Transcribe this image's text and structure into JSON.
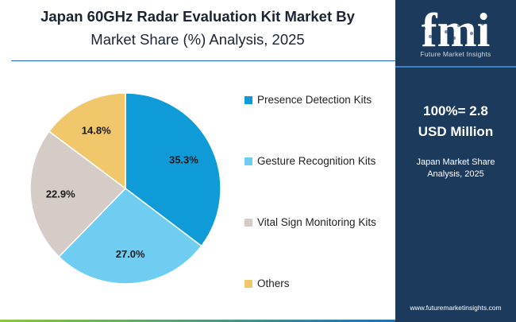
{
  "title": {
    "line1": "Japan 60GHz Radar Evaluation Kit Market By",
    "line2": "Market Share (%) Analysis, 2025"
  },
  "chart_data": {
    "type": "pie",
    "title": "Japan 60GHz Radar Evaluation Kit Market By Market Share (%) Analysis, 2025",
    "categories": [
      "Presence Detection Kits",
      "Gesture Recognition Kits",
      "Vital Sign Monitoring Kits",
      "Others"
    ],
    "values": [
      35.3,
      27.0,
      22.9,
      14.8
    ],
    "labels": [
      "35.3%",
      "27.0%",
      "22.9%",
      "14.8%"
    ],
    "colors": [
      "#0f9ad8",
      "#6fcdf2",
      "#d5ccc8",
      "#f0c76b"
    ],
    "start_angle_deg": 0,
    "direction": "clockwise",
    "legend_position": "right"
  },
  "sidebar": {
    "logo_letters": "fmi",
    "logo_tagline": "Future Market Insights",
    "total_line1": "100%= 2.8",
    "total_line2": "USD Million",
    "note_line1": "Japan Market Share",
    "note_line2": "Analysis, 2025",
    "url": "www.futuremarketinsights.com",
    "colors": {
      "background": "#1b3a5c",
      "accent": "#3d7fc4"
    }
  }
}
